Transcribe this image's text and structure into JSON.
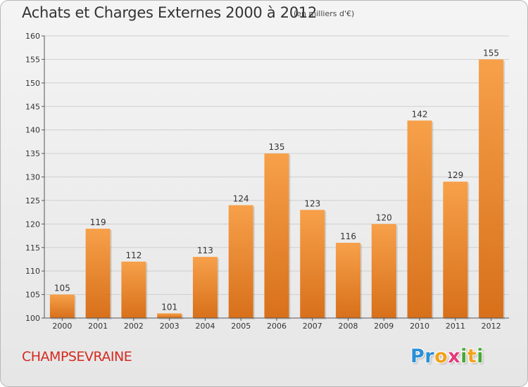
{
  "header": {
    "title": "Achats et Charges Externes 2000 à 2012",
    "unit": "(en milliers d'€)"
  },
  "footer": {
    "commune": "CHAMPSEVRAINE",
    "logo_letters": [
      {
        "ch": "P",
        "color": "#2a8fd6"
      },
      {
        "ch": "r",
        "color": "#2a8fd6"
      },
      {
        "ch": "o",
        "color": "#f2a21b"
      },
      {
        "ch": "x",
        "color": "#e23b7a"
      },
      {
        "ch": "i",
        "color": "#49a838"
      },
      {
        "ch": "t",
        "color": "#f2a21b"
      },
      {
        "ch": "i",
        "color": "#49a838"
      }
    ]
  },
  "colors": {
    "bar_light": "#f7a04a",
    "bar_dark": "#d8701a",
    "grid": "#cfcfcf",
    "axis": "#555555",
    "text": "#333333"
  },
  "chart_data": {
    "type": "bar",
    "categories": [
      "2000",
      "2001",
      "2002",
      "2003",
      "2004",
      "2005",
      "2006",
      "2007",
      "2008",
      "2009",
      "2010",
      "2011",
      "2012"
    ],
    "values": [
      105,
      119,
      112,
      101,
      113,
      124,
      135,
      123,
      116,
      120,
      142,
      129,
      155
    ],
    "ylim": [
      100,
      160
    ],
    "yticks": [
      100,
      105,
      110,
      115,
      120,
      125,
      130,
      135,
      140,
      145,
      150,
      155,
      160
    ],
    "grid": true,
    "data_labels": true
  }
}
